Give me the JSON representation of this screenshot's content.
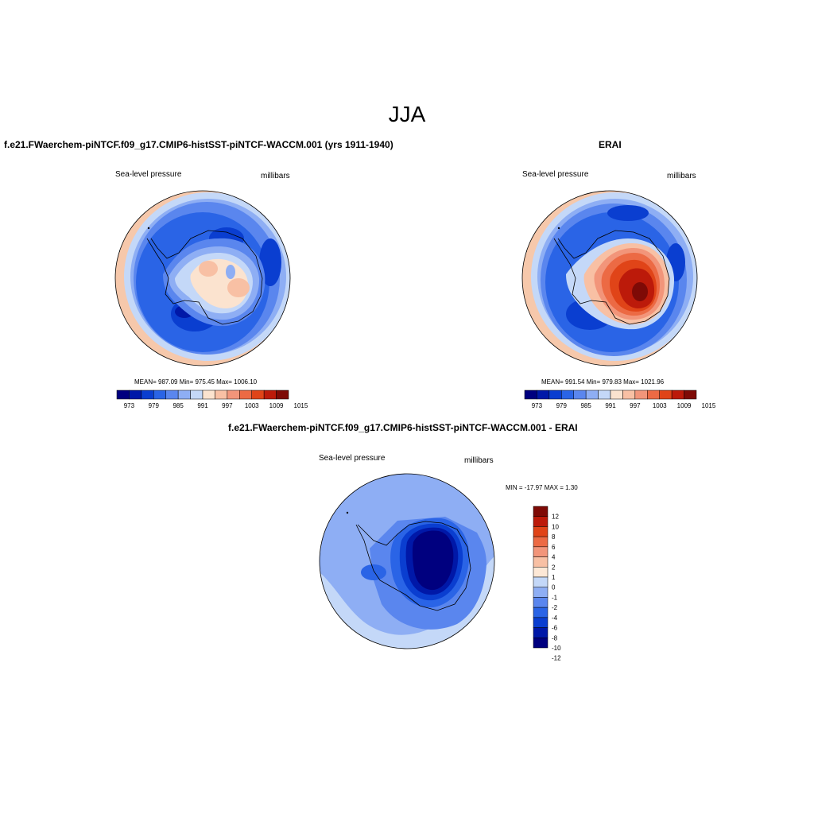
{
  "figure": {
    "title": "JJA"
  },
  "colors": {
    "abs_palette": [
      "#00007f",
      "#0018a8",
      "#0a3ed0",
      "#2a64e6",
      "#5a86ee",
      "#8eaef4",
      "#c4d8f8",
      "#fbe3cf",
      "#f8c0a4",
      "#f2957a",
      "#ec6a44",
      "#e04418",
      "#bc1a0a",
      "#7e0a06"
    ],
    "diff_palette": [
      "#00007f",
      "#0018a8",
      "#0a3ed0",
      "#2a64e6",
      "#5a86ee",
      "#8eaef4",
      "#c4d8f8",
      "#fde8d6",
      "#f8c0a4",
      "#f2957a",
      "#ec6a44",
      "#e04418",
      "#bc1a0a",
      "#7e0a06"
    ]
  },
  "chart_data": [
    {
      "type": "heatmap",
      "title": "f.e21.FWaerchem-piNTCF.f09_g17.CMIP6-histSST-piNTCF-WACCM.001 (yrs 1911-1940)",
      "left_label": "Sea-level pressure",
      "right_label": "millibars",
      "stats_text": "MEAN= 987.09  Min= 975.45  Max= 1006.10",
      "stats": {
        "mean": 987.09,
        "min": 975.45,
        "max": 1006.1
      },
      "colorbar_labels": [
        "973",
        "979",
        "985",
        "991",
        "997",
        "1003",
        "1009",
        "1015"
      ],
      "colorbar_levels": [
        973,
        976,
        979,
        982,
        985,
        988,
        991,
        994,
        997,
        1000,
        1003,
        1006,
        1009,
        1012,
        1015
      ]
    },
    {
      "type": "heatmap",
      "title": "ERAI",
      "left_label": "Sea-level pressure",
      "right_label": "millibars",
      "stats_text": "MEAN= 991.54  Min= 979.83  Max= 1021.96",
      "stats": {
        "mean": 991.54,
        "min": 979.83,
        "max": 1021.96
      },
      "colorbar_labels": [
        "973",
        "979",
        "985",
        "991",
        "997",
        "1003",
        "1009",
        "1015"
      ],
      "colorbar_levels": [
        973,
        976,
        979,
        982,
        985,
        988,
        991,
        994,
        997,
        1000,
        1003,
        1006,
        1009,
        1012,
        1015
      ]
    },
    {
      "type": "heatmap",
      "title": "f.e21.FWaerchem-piNTCF.f09_g17.CMIP6-histSST-piNTCF-WACCM.001 - ERAI",
      "left_label": "Sea-level pressure",
      "right_label": "millibars",
      "stats_text": "MIN = -17.97 MAX =   1.30",
      "stats": {
        "min": -17.97,
        "max": 1.3
      },
      "colorbar_labels": [
        "12",
        "10",
        "8",
        "6",
        "4",
        "2",
        "1",
        "0",
        "-1",
        "-2",
        "-4",
        "-6",
        "-8",
        "-10",
        "-12"
      ],
      "colorbar_levels": [
        12,
        10,
        8,
        6,
        4,
        2,
        1,
        0,
        -1,
        -2,
        -4,
        -6,
        -8,
        -10,
        -12
      ]
    }
  ]
}
